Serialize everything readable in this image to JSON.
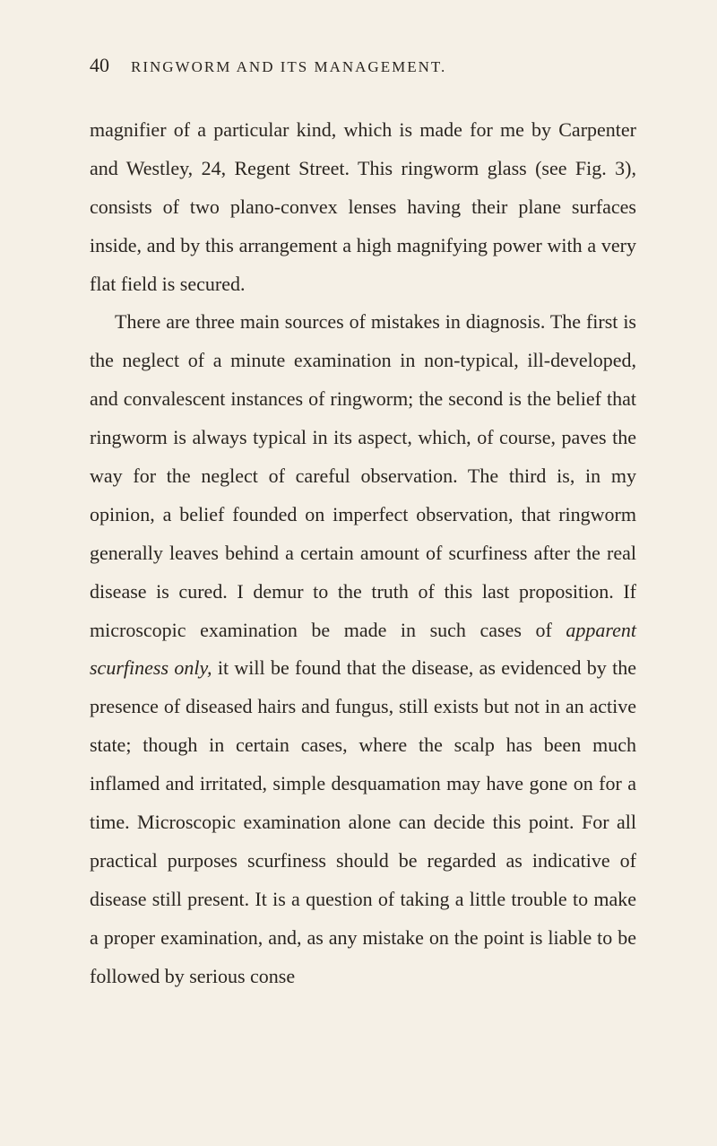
{
  "header": {
    "pageNumber": "40",
    "runningTitle": "RINGWORM AND ITS MANAGEMENT."
  },
  "paragraphs": {
    "p1": "magnifier of a particular kind, which is made for me by Carpenter and Westley, 24, Regent Street. This ringworm glass (see Fig. 3), consists of two plano-convex lenses having their plane surfaces inside, and by this arrangement a high magnifying power with a very flat field is secured.",
    "p2_part1": "There are three main sources of mistakes in diagnosis. The first is the neglect of a minute examination in non-typical, ill-developed, and convalescent instances of ringworm; the second is the belief that ringworm is always typical in its aspect, which, of course, paves the way for the neglect of careful observation. The third is, in my opinion, a belief founded on imperfect observation, that ringworm generally leaves behind a certain amount of scurfiness after the real disease is cured. I demur to the truth of this last proposition. If microscopic examination be made in such cases of ",
    "p2_italic1": "apparent scurfiness only,",
    "p2_part2": " it will be found that the disease, as evidenced by the presence of diseased hairs and fungus, still exists but not in an active state; though in certain cases, where the scalp has been much inflamed and irritated, simple desquamation may have gone on for a time. Microscopic examination alone can decide this point. For all practical purposes scurfiness should be regarded as indicative of disease still present. It is a question of taking a little trouble to make a proper examination, and, as any mistake on the point is liable to be followed by serious conse"
  }
}
